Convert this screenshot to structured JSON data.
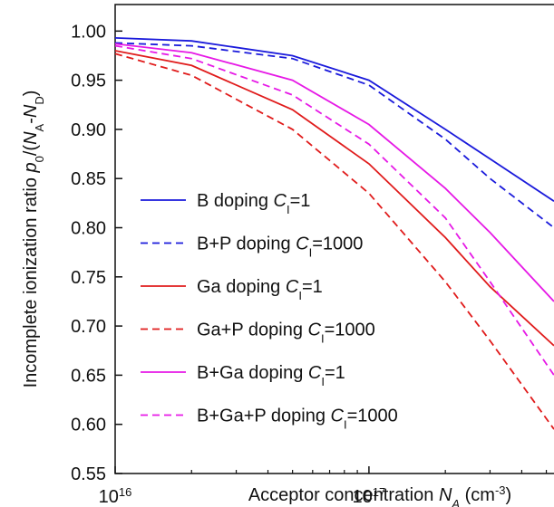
{
  "chart_data": {
    "type": "line",
    "y_label": [
      {
        "text": "Incomplete ionization ratio "
      },
      {
        "text": "p",
        "style": "italic"
      },
      {
        "text": "0",
        "style": "sub"
      },
      {
        "text": "/("
      },
      {
        "text": "N",
        "style": "italic"
      },
      {
        "text": "A",
        "style": "sub"
      },
      {
        "text": "-"
      },
      {
        "text": "N",
        "style": "italic"
      },
      {
        "text": "D",
        "style": "sub"
      },
      {
        "text": ")"
      }
    ],
    "x_label": [
      {
        "text": "Acceptor concentration "
      },
      {
        "text": "N",
        "style": "italic"
      },
      {
        "text": "A",
        "style": "sub-italic"
      },
      {
        "text": " (cm"
      },
      {
        "text": "-3",
        "style": "sup"
      },
      {
        "text": ")"
      }
    ],
    "x_scale": "log",
    "x": [
      1e+16,
      2e+16,
      5e+16,
      1e+17,
      2e+17,
      3e+17,
      5.36e+17
    ],
    "xlim": [
      1e+16,
      5.36e+17
    ],
    "xticks": [
      {
        "value": 1e+16,
        "label": "10",
        "exponent": "16"
      },
      {
        "value": 1e+17,
        "label": "10",
        "exponent": "17"
      }
    ],
    "ylim": [
      0.55,
      1.027
    ],
    "yticks": [
      {
        "value": 0.55,
        "label": "0.55"
      },
      {
        "value": 0.6,
        "label": "0.60"
      },
      {
        "value": 0.65,
        "label": "0.65"
      },
      {
        "value": 0.7,
        "label": "0.70"
      },
      {
        "value": 0.75,
        "label": "0.75"
      },
      {
        "value": 0.8,
        "label": "0.80"
      },
      {
        "value": 0.85,
        "label": "0.85"
      },
      {
        "value": 0.9,
        "label": "0.90"
      },
      {
        "value": 0.95,
        "label": "0.95"
      },
      {
        "value": 1,
        "label": "1.00"
      }
    ],
    "legend": "left",
    "series": [
      {
        "name": [
          {
            "text": "B doping "
          },
          {
            "text": "C",
            "style": "italic"
          },
          {
            "text": "I",
            "style": "sub"
          },
          {
            "text": "=1"
          }
        ],
        "color": "#1a1adb",
        "dash": false,
        "values": [
          0.993,
          0.99,
          0.975,
          0.95,
          0.9,
          0.87,
          0.827
        ]
      },
      {
        "name": [
          {
            "text": "B+P doping "
          },
          {
            "text": "C",
            "style": "italic"
          },
          {
            "text": "I",
            "style": "sub"
          },
          {
            "text": "=1000"
          }
        ],
        "color": "#1a1adb",
        "dash": true,
        "values": [
          0.988,
          0.985,
          0.972,
          0.945,
          0.89,
          0.85,
          0.8
        ]
      },
      {
        "name": [
          {
            "text": "Ga doping "
          },
          {
            "text": "C",
            "style": "italic"
          },
          {
            "text": "I",
            "style": "sub"
          },
          {
            "text": "=1"
          }
        ],
        "color": "#e01b1b",
        "dash": false,
        "values": [
          0.98,
          0.965,
          0.92,
          0.865,
          0.79,
          0.74,
          0.68
        ]
      },
      {
        "name": [
          {
            "text": "Ga+P doping "
          },
          {
            "text": "C",
            "style": "italic"
          },
          {
            "text": "I",
            "style": "sub"
          },
          {
            "text": "=1000"
          }
        ],
        "color": "#e01b1b",
        "dash": true,
        "values": [
          0.977,
          0.955,
          0.9,
          0.835,
          0.745,
          0.685,
          0.595
        ]
      },
      {
        "name": [
          {
            "text": "B+Ga doping "
          },
          {
            "text": "C",
            "style": "italic"
          },
          {
            "text": "I",
            "style": "sub"
          },
          {
            "text": "=1"
          }
        ],
        "color": "#e619e6",
        "dash": false,
        "values": [
          0.987,
          0.978,
          0.95,
          0.905,
          0.84,
          0.795,
          0.725
        ]
      },
      {
        "name": [
          {
            "text": "B+Ga+P doping "
          },
          {
            "text": "C",
            "style": "italic"
          },
          {
            "text": "I",
            "style": "sub"
          },
          {
            "text": "=1000"
          }
        ],
        "color": "#e619e6",
        "dash": true,
        "values": [
          0.985,
          0.972,
          0.935,
          0.885,
          0.81,
          0.745,
          0.65
        ]
      }
    ]
  }
}
